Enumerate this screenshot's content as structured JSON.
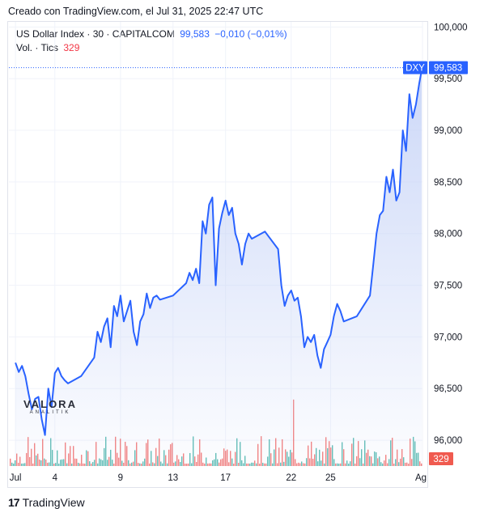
{
  "header": {
    "created": "Creado con TradingView.com, el Jul 31, 2025 22:47 UTC"
  },
  "legend": {
    "symbol": "US Dollar Index · 30 · CAPITALCOM",
    "last": "99,583",
    "change": "−0,010 (−0,01%)",
    "volume_label": "Vol. · Tics",
    "volume_value": "329"
  },
  "footer": {
    "brand": "TradingView",
    "logo": "17"
  },
  "watermark": {
    "name": "VALORA",
    "sub": "ANALITIK"
  },
  "colors": {
    "line": "#2962ff",
    "fill_top": "#c7d4f7",
    "vol_up": "#26a69a",
    "vol_down": "#ef5350",
    "vol_badge": "#f05a4f"
  },
  "chart_data": {
    "type": "line",
    "series": [
      {
        "name": "US Dollar Index",
        "points": [
          [
            "2025-07-01 00:00",
            96.75
          ],
          [
            "2025-07-01 06:00",
            96.66
          ],
          [
            "2025-07-01 12:00",
            96.72
          ],
          [
            "2025-07-01 18:00",
            96.62
          ],
          [
            "2025-07-02 00:00",
            96.45
          ],
          [
            "2025-07-02 06:00",
            96.3
          ],
          [
            "2025-07-02 12:00",
            96.4
          ],
          [
            "2025-07-02 18:00",
            96.42
          ],
          [
            "2025-07-03 00:00",
            96.2
          ],
          [
            "2025-07-03 06:00",
            96.05
          ],
          [
            "2025-07-03 12:00",
            96.5
          ],
          [
            "2025-07-03 18:00",
            96.32
          ],
          [
            "2025-07-04 00:00",
            96.65
          ],
          [
            "2025-07-04 06:00",
            96.7
          ],
          [
            "2025-07-04 12:00",
            96.62
          ],
          [
            "2025-07-04 18:00",
            96.58
          ],
          [
            "2025-07-05 00:00",
            96.55
          ],
          [
            "2025-07-06 00:00",
            96.62
          ],
          [
            "2025-07-07 00:00",
            96.8
          ],
          [
            "2025-07-07 06:00",
            97.05
          ],
          [
            "2025-07-07 12:00",
            96.95
          ],
          [
            "2025-07-07 18:00",
            97.1
          ],
          [
            "2025-07-08 00:00",
            97.18
          ],
          [
            "2025-07-08 06:00",
            96.9
          ],
          [
            "2025-07-08 12:00",
            97.3
          ],
          [
            "2025-07-08 18:00",
            97.2
          ],
          [
            "2025-07-09 00:00",
            97.4
          ],
          [
            "2025-07-09 06:00",
            97.15
          ],
          [
            "2025-07-09 12:00",
            97.25
          ],
          [
            "2025-07-09 18:00",
            97.35
          ],
          [
            "2025-07-10 00:00",
            97.05
          ],
          [
            "2025-07-10 06:00",
            96.92
          ],
          [
            "2025-07-10 12:00",
            97.15
          ],
          [
            "2025-07-10 18:00",
            97.22
          ],
          [
            "2025-07-11 00:00",
            97.42
          ],
          [
            "2025-07-11 06:00",
            97.28
          ],
          [
            "2025-07-11 12:00",
            97.38
          ],
          [
            "2025-07-11 18:00",
            97.4
          ],
          [
            "2025-07-12 00:00",
            97.36
          ],
          [
            "2025-07-13 00:00",
            97.4
          ],
          [
            "2025-07-14 00:00",
            97.52
          ],
          [
            "2025-07-14 06:00",
            97.62
          ],
          [
            "2025-07-14 12:00",
            97.55
          ],
          [
            "2025-07-14 18:00",
            97.66
          ],
          [
            "2025-07-15 00:00",
            97.52
          ],
          [
            "2025-07-15 06:00",
            98.12
          ],
          [
            "2025-07-15 12:00",
            98.0
          ],
          [
            "2025-07-15 18:00",
            98.28
          ],
          [
            "2025-07-16 00:00",
            98.35
          ],
          [
            "2025-07-16 06:00",
            97.5
          ],
          [
            "2025-07-16 12:00",
            98.05
          ],
          [
            "2025-07-16 18:00",
            98.2
          ],
          [
            "2025-07-17 00:00",
            98.32
          ],
          [
            "2025-07-17 06:00",
            98.18
          ],
          [
            "2025-07-17 12:00",
            98.25
          ],
          [
            "2025-07-17 18:00",
            98.0
          ],
          [
            "2025-07-18 00:00",
            97.9
          ],
          [
            "2025-07-18 06:00",
            97.7
          ],
          [
            "2025-07-18 12:00",
            97.9
          ],
          [
            "2025-07-18 18:00",
            98.0
          ],
          [
            "2025-07-19 00:00",
            97.95
          ],
          [
            "2025-07-20 00:00",
            98.02
          ],
          [
            "2025-07-21 00:00",
            97.85
          ],
          [
            "2025-07-21 06:00",
            97.5
          ],
          [
            "2025-07-21 12:00",
            97.3
          ],
          [
            "2025-07-21 18:00",
            97.4
          ],
          [
            "2025-07-22 00:00",
            97.45
          ],
          [
            "2025-07-22 06:00",
            97.35
          ],
          [
            "2025-07-22 12:00",
            97.38
          ],
          [
            "2025-07-22 18:00",
            97.2
          ],
          [
            "2025-07-23 00:00",
            96.9
          ],
          [
            "2025-07-23 06:00",
            97.0
          ],
          [
            "2025-07-23 12:00",
            96.95
          ],
          [
            "2025-07-23 18:00",
            97.02
          ],
          [
            "2025-07-24 00:00",
            96.82
          ],
          [
            "2025-07-24 06:00",
            96.7
          ],
          [
            "2025-07-24 12:00",
            96.88
          ],
          [
            "2025-07-24 18:00",
            96.95
          ],
          [
            "2025-07-25 00:00",
            97.02
          ],
          [
            "2025-07-25 06:00",
            97.2
          ],
          [
            "2025-07-25 12:00",
            97.32
          ],
          [
            "2025-07-25 18:00",
            97.25
          ],
          [
            "2025-07-26 00:00",
            97.15
          ],
          [
            "2025-07-27 00:00",
            97.2
          ],
          [
            "2025-07-28 00:00",
            97.4
          ],
          [
            "2025-07-28 06:00",
            97.7
          ],
          [
            "2025-07-28 12:00",
            98.0
          ],
          [
            "2025-07-28 18:00",
            98.18
          ],
          [
            "2025-07-29 00:00",
            98.22
          ],
          [
            "2025-07-29 06:00",
            98.55
          ],
          [
            "2025-07-29 12:00",
            98.4
          ],
          [
            "2025-07-29 18:00",
            98.62
          ],
          [
            "2025-07-30 00:00",
            98.32
          ],
          [
            "2025-07-30 06:00",
            98.4
          ],
          [
            "2025-07-30 12:00",
            99.0
          ],
          [
            "2025-07-30 18:00",
            98.8
          ],
          [
            "2025-07-31 00:00",
            99.35
          ],
          [
            "2025-07-31 06:00",
            99.12
          ],
          [
            "2025-07-31 12:00",
            99.25
          ],
          [
            "2025-07-31 18:00",
            99.45
          ],
          [
            "2025-07-31 22:30",
            99.583
          ]
        ]
      }
    ],
    "x_tick_labels": [
      [
        "2025-07-01",
        "Jul"
      ],
      [
        "2025-07-04",
        "4"
      ],
      [
        "2025-07-09",
        "9"
      ],
      [
        "2025-07-13",
        "13"
      ],
      [
        "2025-07-17",
        "17"
      ],
      [
        "2025-07-22",
        "22"
      ],
      [
        "2025-07-25",
        "25"
      ],
      [
        "2025-08-01",
        "Ag"
      ]
    ],
    "y_tick_labels": [
      "96,000",
      "96,500",
      "97,000",
      "97,500",
      "98,000",
      "98,500",
      "99,000",
      "99,500",
      "100,000"
    ],
    "y_tick_values": [
      96.0,
      96.5,
      97.0,
      97.5,
      98.0,
      98.5,
      99.0,
      99.5,
      100.0
    ],
    "ylim": [
      95.75,
      100.05
    ],
    "xlim": [
      "2025-06-30 12:00",
      "2025-08-01 00:00"
    ],
    "last_price_label": "99,583",
    "symbol_badge": "DXY",
    "volume_badge": "329",
    "grid": true,
    "legend_position": "top-left"
  }
}
